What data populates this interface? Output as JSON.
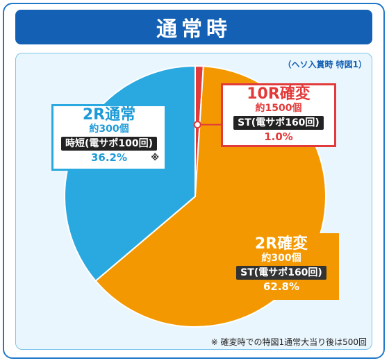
{
  "title": "通常時",
  "subnote": "（ヘソ入賞時 特図1）",
  "footnote": "※ 確変時での特図1通常大当り後は500回",
  "colors": {
    "blue": "#1460b4",
    "st_red": "#e23a3a",
    "jitan_blue": "#2aa8e0",
    "kakuhen_orange": "#f39800"
  },
  "chart_data": {
    "type": "pie",
    "title": "通常時",
    "slices": [
      {
        "label": "10R確変",
        "value": 1.0,
        "color": "#e23a3a"
      },
      {
        "label": "2R確変",
        "value": 62.8,
        "color": "#f39800"
      },
      {
        "label": "2R通常",
        "value": 36.2,
        "color": "#2aa8e0"
      }
    ]
  },
  "labels": {
    "red": {
      "name": "10R確変",
      "sub": "約1500個",
      "tag": "ST(電サポ160回)",
      "pct": "1.0%"
    },
    "orange": {
      "name": "2R確変",
      "sub": "約300個",
      "tag": "ST(電サポ160回)",
      "pct": "62.8%"
    },
    "blue": {
      "name": "2R通常",
      "sub": "約300個",
      "tag": "時短(電サポ100回)",
      "pct": "36.2%",
      "mark": "※"
    }
  }
}
